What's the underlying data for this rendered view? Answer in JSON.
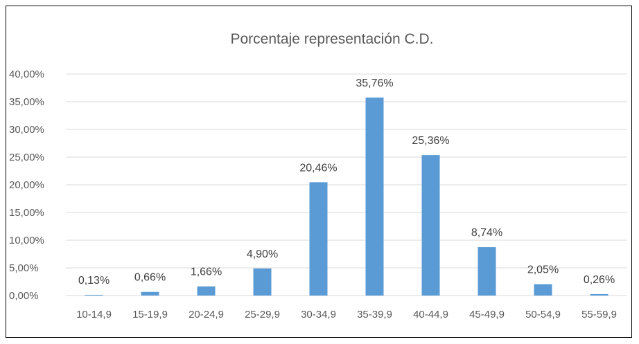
{
  "chart_data": {
    "type": "bar",
    "title": "Porcentaje representación C.D.",
    "xlabel": "",
    "ylabel": "",
    "categories": [
      "10-14,9",
      "15-19,9",
      "20-24,9",
      "25-29,9",
      "30-34,9",
      "35-39,9",
      "40-44,9",
      "45-49,9",
      "50-54,9",
      "55-59,9"
    ],
    "values": [
      0.13,
      0.66,
      1.66,
      4.9,
      20.46,
      35.76,
      25.36,
      8.74,
      2.05,
      0.26
    ],
    "data_labels": [
      "0,13%",
      "0,66%",
      "1,66%",
      "4,90%",
      "20,46%",
      "35,76%",
      "25,36%",
      "8,74%",
      "2,05%",
      "0,26%"
    ],
    "ylim": [
      0,
      40
    ],
    "yticks": [
      0,
      5,
      10,
      15,
      20,
      25,
      30,
      35,
      40
    ],
    "ytick_labels": [
      "0,00%",
      "5,00%",
      "10,00%",
      "15,00%",
      "20,00%",
      "25,00%",
      "30,00%",
      "35,00%",
      "40,00%"
    ],
    "grid": true,
    "legend": "none",
    "bar_color": "#5b9bd5"
  }
}
